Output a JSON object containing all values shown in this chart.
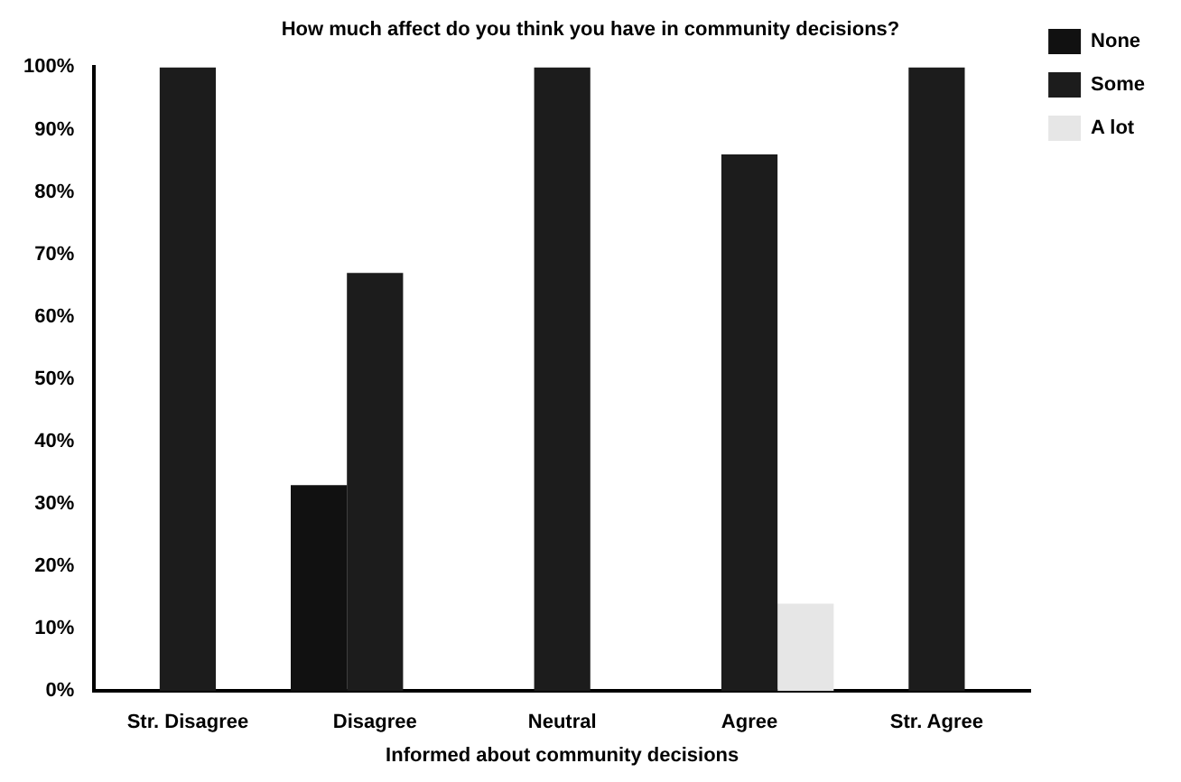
{
  "chart_data": {
    "type": "bar",
    "title": "How much affect do you think you have in community decisions?",
    "xlabel": "Informed about community decisions",
    "categories": [
      "Str. Disagree",
      "Disagree",
      "Neutral",
      "Agree",
      "Str. Agree"
    ],
    "series": [
      {
        "name": "None",
        "color": "#111111",
        "values": [
          0,
          33,
          0,
          0,
          0
        ]
      },
      {
        "name": "Some",
        "color": "#1c1c1c",
        "values": [
          100,
          67,
          100,
          86,
          100
        ]
      },
      {
        "name": "A lot",
        "color": "#e6e6e6",
        "values": [
          0,
          0,
          0,
          14,
          0
        ]
      }
    ],
    "ylim": [
      0,
      100
    ],
    "yticks": [
      {
        "value": 0,
        "label": "0%"
      },
      {
        "value": 10,
        "label": "10%"
      },
      {
        "value": 20,
        "label": "20%"
      },
      {
        "value": 30,
        "label": "30%"
      },
      {
        "value": 40,
        "label": "40%"
      },
      {
        "value": 50,
        "label": "50%"
      },
      {
        "value": 60,
        "label": "60%"
      },
      {
        "value": 70,
        "label": "70%"
      },
      {
        "value": 80,
        "label": "80%"
      },
      {
        "value": 90,
        "label": "90%"
      },
      {
        "value": 100,
        "label": "100%"
      }
    ],
    "grid": false,
    "legend": "top right"
  }
}
